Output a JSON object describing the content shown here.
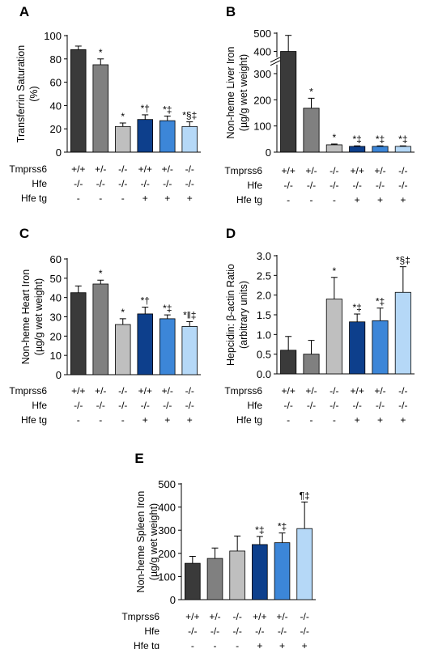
{
  "colors": [
    "#3a3a3a",
    "#808080",
    "#bfbfbf",
    "#0d3f8c",
    "#3c86d8",
    "#b5d8f7"
  ],
  "chart_data": [
    {
      "panel": "A",
      "type": "bar",
      "ylabel": [
        "Transferrin Saturation",
        "(%)"
      ],
      "ylim": [
        0,
        100
      ],
      "yticks": [
        0,
        20,
        40,
        60,
        80,
        100
      ],
      "values": [
        88,
        75,
        22,
        28,
        27,
        22
      ],
      "errors": [
        3,
        5,
        3,
        4,
        4,
        4
      ],
      "sig": [
        "",
        "*",
        "*",
        "*†",
        "*‡",
        "*§‡"
      ],
      "genotype_rows": [
        {
          "label": "Tmprss6",
          "values": [
            "+/+",
            "+/-",
            "-/-",
            "+/+",
            "+/-",
            "-/-"
          ]
        },
        {
          "label": "Hfe",
          "values": [
            "-/-",
            "-/-",
            "-/-",
            "-/-",
            "-/-",
            "-/-"
          ]
        },
        {
          "label": "Hfe tg",
          "values": [
            "-",
            "-",
            "-",
            "+",
            "+",
            "+"
          ]
        }
      ]
    },
    {
      "panel": "B",
      "type": "bar",
      "broken_axis": true,
      "ylabel": [
        "Non-heme Liver Iron",
        "(µg/g wet weight)"
      ],
      "ylim": [
        0,
        500
      ],
      "yticks": [
        0,
        100,
        200,
        300,
        400,
        500
      ],
      "values": [
        400,
        168,
        28,
        22,
        22,
        22
      ],
      "errors": [
        88,
        38,
        3,
        2,
        2,
        2
      ],
      "sig": [
        "",
        "*",
        "*",
        "*‡",
        "*‡",
        "*‡"
      ],
      "genotype_rows": [
        {
          "label": "Tmprss6",
          "values": [
            "+/+",
            "+/-",
            "-/-",
            "+/+",
            "+/-",
            "-/-"
          ]
        },
        {
          "label": "Hfe",
          "values": [
            "-/-",
            "-/-",
            "-/-",
            "-/-",
            "-/-",
            "-/-"
          ]
        },
        {
          "label": "Hfe tg",
          "values": [
            "-",
            "-",
            "-",
            "+",
            "+",
            "+"
          ]
        }
      ]
    },
    {
      "panel": "C",
      "type": "bar",
      "ylabel": [
        "Non-heme Heart Iron",
        "(µg/g wet weight)"
      ],
      "ylim": [
        0,
        60
      ],
      "yticks": [
        0,
        10,
        20,
        30,
        40,
        50,
        60
      ],
      "values": [
        42.5,
        47,
        26,
        31.5,
        29,
        25
      ],
      "errors": [
        3.5,
        2,
        3,
        3.5,
        2,
        2.5
      ],
      "sig": [
        "",
        "*",
        "*",
        "*†",
        "*‡",
        "*‖‡"
      ],
      "genotype_rows": [
        {
          "label": "Tmprss6",
          "values": [
            "+/+",
            "+/-",
            "-/-",
            "+/+",
            "+/-",
            "-/-"
          ]
        },
        {
          "label": "Hfe",
          "values": [
            "-/-",
            "-/-",
            "-/-",
            "-/-",
            "-/-",
            "-/-"
          ]
        },
        {
          "label": "Hfe tg",
          "values": [
            "-",
            "-",
            "-",
            "+",
            "+",
            "+"
          ]
        }
      ]
    },
    {
      "panel": "D",
      "type": "bar",
      "ylabel": [
        "Hepcidin: β-actin Ratio",
        "(arbitrary units)"
      ],
      "ylim": [
        0,
        3
      ],
      "yticks": [
        "0.0",
        "0.5",
        "1.0",
        "1.5",
        "2.0",
        "2.5",
        "3.0"
      ],
      "values": [
        0.6,
        0.5,
        1.9,
        1.32,
        1.35,
        2.07
      ],
      "errors": [
        0.35,
        0.35,
        0.55,
        0.2,
        0.32,
        0.65
      ],
      "sig": [
        "",
        "",
        "*",
        "*‡",
        "*‡",
        "*§‡"
      ],
      "genotype_rows": [
        {
          "label": "Tmprss6",
          "values": [
            "+/+",
            "+/-",
            "-/-",
            "+/+",
            "+/-",
            "-/-"
          ]
        },
        {
          "label": "Hfe",
          "values": [
            "-/-",
            "-/-",
            "-/-",
            "-/-",
            "-/-",
            "-/-"
          ]
        },
        {
          "label": "Hfe tg",
          "values": [
            "-",
            "-",
            "-",
            "+",
            "+",
            "+"
          ]
        }
      ]
    },
    {
      "panel": "E",
      "type": "bar",
      "ylabel": [
        "Non-heme Spleen Iron",
        "(µg/g wet weight)"
      ],
      "ylim": [
        0,
        500
      ],
      "yticks": [
        0,
        100,
        200,
        300,
        400,
        500
      ],
      "values": [
        157,
        178,
        210,
        238,
        246,
        307
      ],
      "errors": [
        30,
        45,
        65,
        35,
        42,
        115
      ],
      "sig": [
        "",
        "",
        "",
        "*‡",
        "*‡",
        "¶‡"
      ],
      "genotype_rows": [
        {
          "label": "Tmprss6",
          "values": [
            "+/+",
            "+/-",
            "-/-",
            "+/+",
            "+/-",
            "-/-"
          ]
        },
        {
          "label": "Hfe",
          "values": [
            "-/-",
            "-/-",
            "-/-",
            "-/-",
            "-/-",
            "-/-"
          ]
        },
        {
          "label": "Hfe tg",
          "values": [
            "-",
            "-",
            "-",
            "+",
            "+",
            "+"
          ]
        }
      ]
    }
  ]
}
